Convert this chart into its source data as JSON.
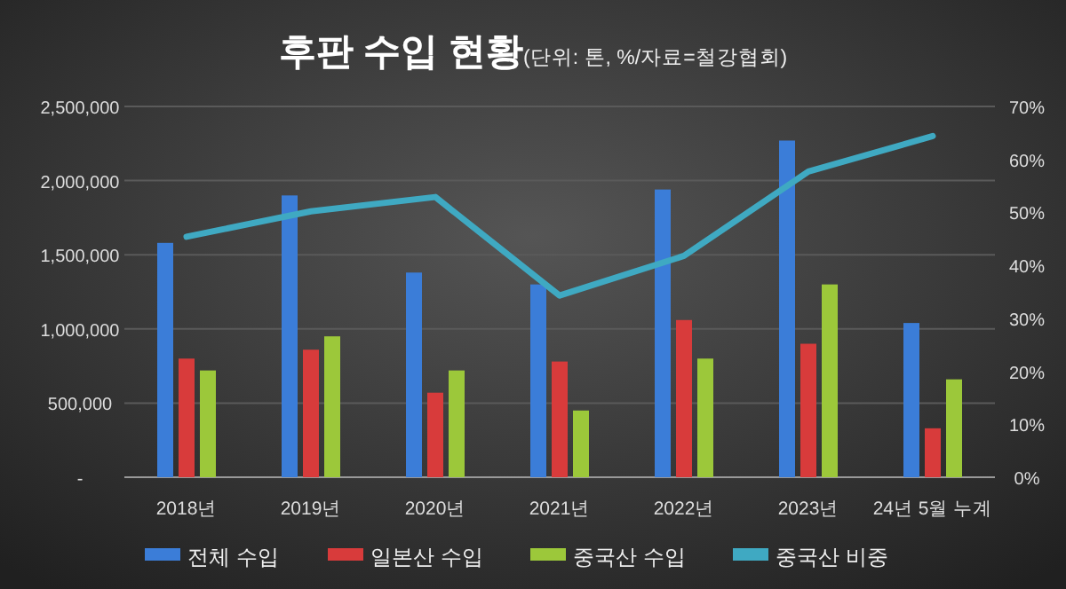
{
  "chart_data": {
    "type": "bar",
    "title": "후판 수입 현황",
    "subtitle": "(단위: 톤, %/자료=철강협회)",
    "categories": [
      "2018년",
      "2019년",
      "2020년",
      "2021년",
      "2022년",
      "2023년",
      "24년 5월 누계"
    ],
    "series": [
      {
        "name": "전체 수입",
        "color": "#3b7dd8",
        "values": [
          1580000,
          1900000,
          1380000,
          1300000,
          1940000,
          2270000,
          1040000
        ]
      },
      {
        "name": "일본산 수입",
        "color": "#d83b3b",
        "values": [
          800000,
          860000,
          570000,
          780000,
          1060000,
          900000,
          330000
        ]
      },
      {
        "name": "중국산 수입",
        "color": "#9cc83a",
        "values": [
          720000,
          950000,
          720000,
          450000,
          800000,
          1300000,
          660000
        ]
      },
      {
        "name": "중국산 비중",
        "type": "line",
        "axis": "y2",
        "color": "#3fa9c2",
        "values": [
          45.4,
          50.2,
          52.9,
          34.3,
          41.8,
          57.7,
          64.4
        ]
      }
    ],
    "ylim": [
      0,
      2500000
    ],
    "yticks": [
      {
        "value": 0,
        "label": "-"
      },
      {
        "value": 500000,
        "label": "500,000"
      },
      {
        "value": 1000000,
        "label": "1,000,000"
      },
      {
        "value": 1500000,
        "label": "1,500,000"
      },
      {
        "value": 2000000,
        "label": "2,000,000"
      },
      {
        "value": 2500000,
        "label": "2,500,000"
      }
    ],
    "y2lim": [
      0,
      70
    ],
    "y2ticks": [
      {
        "value": 0,
        "label": "0%"
      },
      {
        "value": 10,
        "label": "10%"
      },
      {
        "value": 20,
        "label": "20%"
      },
      {
        "value": 30,
        "label": "30%"
      },
      {
        "value": 40,
        "label": "40%"
      },
      {
        "value": 50,
        "label": "50%"
      },
      {
        "value": 60,
        "label": "60%"
      },
      {
        "value": 70,
        "label": "70%"
      }
    ],
    "grid": "y",
    "legend": "bottom"
  }
}
